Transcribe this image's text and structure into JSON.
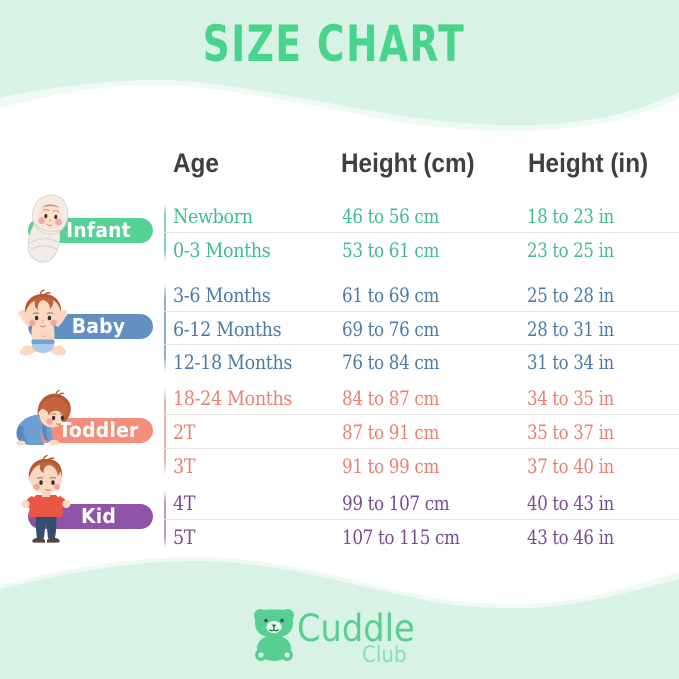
{
  "title": "SIZE CHART",
  "columns": [
    "Age",
    "Height (cm)",
    "Height (in)"
  ],
  "groups": [
    {
      "label": "Infant",
      "pill_color": "#54d394",
      "text_color": "#3ebf8a",
      "line_color": "#86cfb2",
      "rows": [
        {
          "age": "Newborn",
          "cm": "46 to 56 cm",
          "inch": "18 to 23 in"
        },
        {
          "age": "0-3 Months",
          "cm": "53 to 61 cm",
          "inch": "23 to 25 in"
        }
      ]
    },
    {
      "label": "Baby",
      "pill_color": "#6191c3",
      "text_color": "#4a7baa",
      "line_color": "#92aec7",
      "rows": [
        {
          "age": "3-6 Months",
          "cm": "61 to 69 cm",
          "inch": "25 to 28 in"
        },
        {
          "age": "6-12 Months",
          "cm": "69 to 76 cm",
          "inch": "28 to 31 in"
        },
        {
          "age": "12-18 Months",
          "cm": "76 to 84 cm",
          "inch": "31 to 34 in"
        }
      ]
    },
    {
      "label": "Toddler",
      "pill_color": "#f58d7d",
      "text_color": "#ea8070",
      "line_color": "#eab4a8",
      "rows": [
        {
          "age": "18-24 Months",
          "cm": "84 to 87 cm",
          "inch": "34 to 35 in"
        },
        {
          "age": "2T",
          "cm": "87 to 91 cm",
          "inch": "35 to 37 in"
        },
        {
          "age": "3T",
          "cm": "91 to 99 cm",
          "inch": "37 to 40 in"
        }
      ]
    },
    {
      "label": "Kid",
      "pill_color": "#8f54a7",
      "text_color": "#7b4a94",
      "line_color": "#b99cc8",
      "rows": [
        {
          "age": "4T",
          "cm": "99 to 107 cm",
          "inch": "40 to 43 in"
        },
        {
          "age": "5T",
          "cm": "107 to 115 cm",
          "inch": "43 to 46 in"
        }
      ]
    }
  ],
  "logo": {
    "brand": "Cuddle",
    "sub": "Club"
  },
  "colors": {
    "band": "#d8f2e5",
    "band_light": "#edf9f3",
    "title_green": "#48d48c",
    "header_text": "#3f3e40",
    "logo_green": "#57cf93",
    "logo_sub_green": "#87dfb4",
    "separator": "#e9e7e4"
  },
  "chart_data": {
    "type": "table",
    "title": "SIZE CHART",
    "columns": [
      "Age",
      "Height (cm)",
      "Height (in)"
    ],
    "row_groups": [
      {
        "group": "Infant",
        "rows": [
          [
            "Newborn",
            "46 to 56 cm",
            "18 to 23 in"
          ],
          [
            "0-3 Months",
            "53 to 61 cm",
            "23 to 25 in"
          ]
        ]
      },
      {
        "group": "Baby",
        "rows": [
          [
            "3-6 Months",
            "61 to 69 cm",
            "25 to 28 in"
          ],
          [
            "6-12 Months",
            "69 to 76 cm",
            "28 to 31 in"
          ],
          [
            "12-18 Months",
            "76 to 84 cm",
            "31 to 34 in"
          ]
        ]
      },
      {
        "group": "Toddler",
        "rows": [
          [
            "18-24 Months",
            "84 to 87 cm",
            "34 to 35 in"
          ],
          [
            "2T",
            "87 to 91 cm",
            "35 to 37 in"
          ],
          [
            "3T",
            "91 to 99 cm",
            "37 to 40 in"
          ]
        ]
      },
      {
        "group": "Kid",
        "rows": [
          [
            "4T",
            "99 to 107 cm",
            "40 to 43 in"
          ],
          [
            "5T",
            "107 to 115 cm",
            "43 to 46 in"
          ]
        ]
      }
    ],
    "brand": "Cuddle Club"
  }
}
